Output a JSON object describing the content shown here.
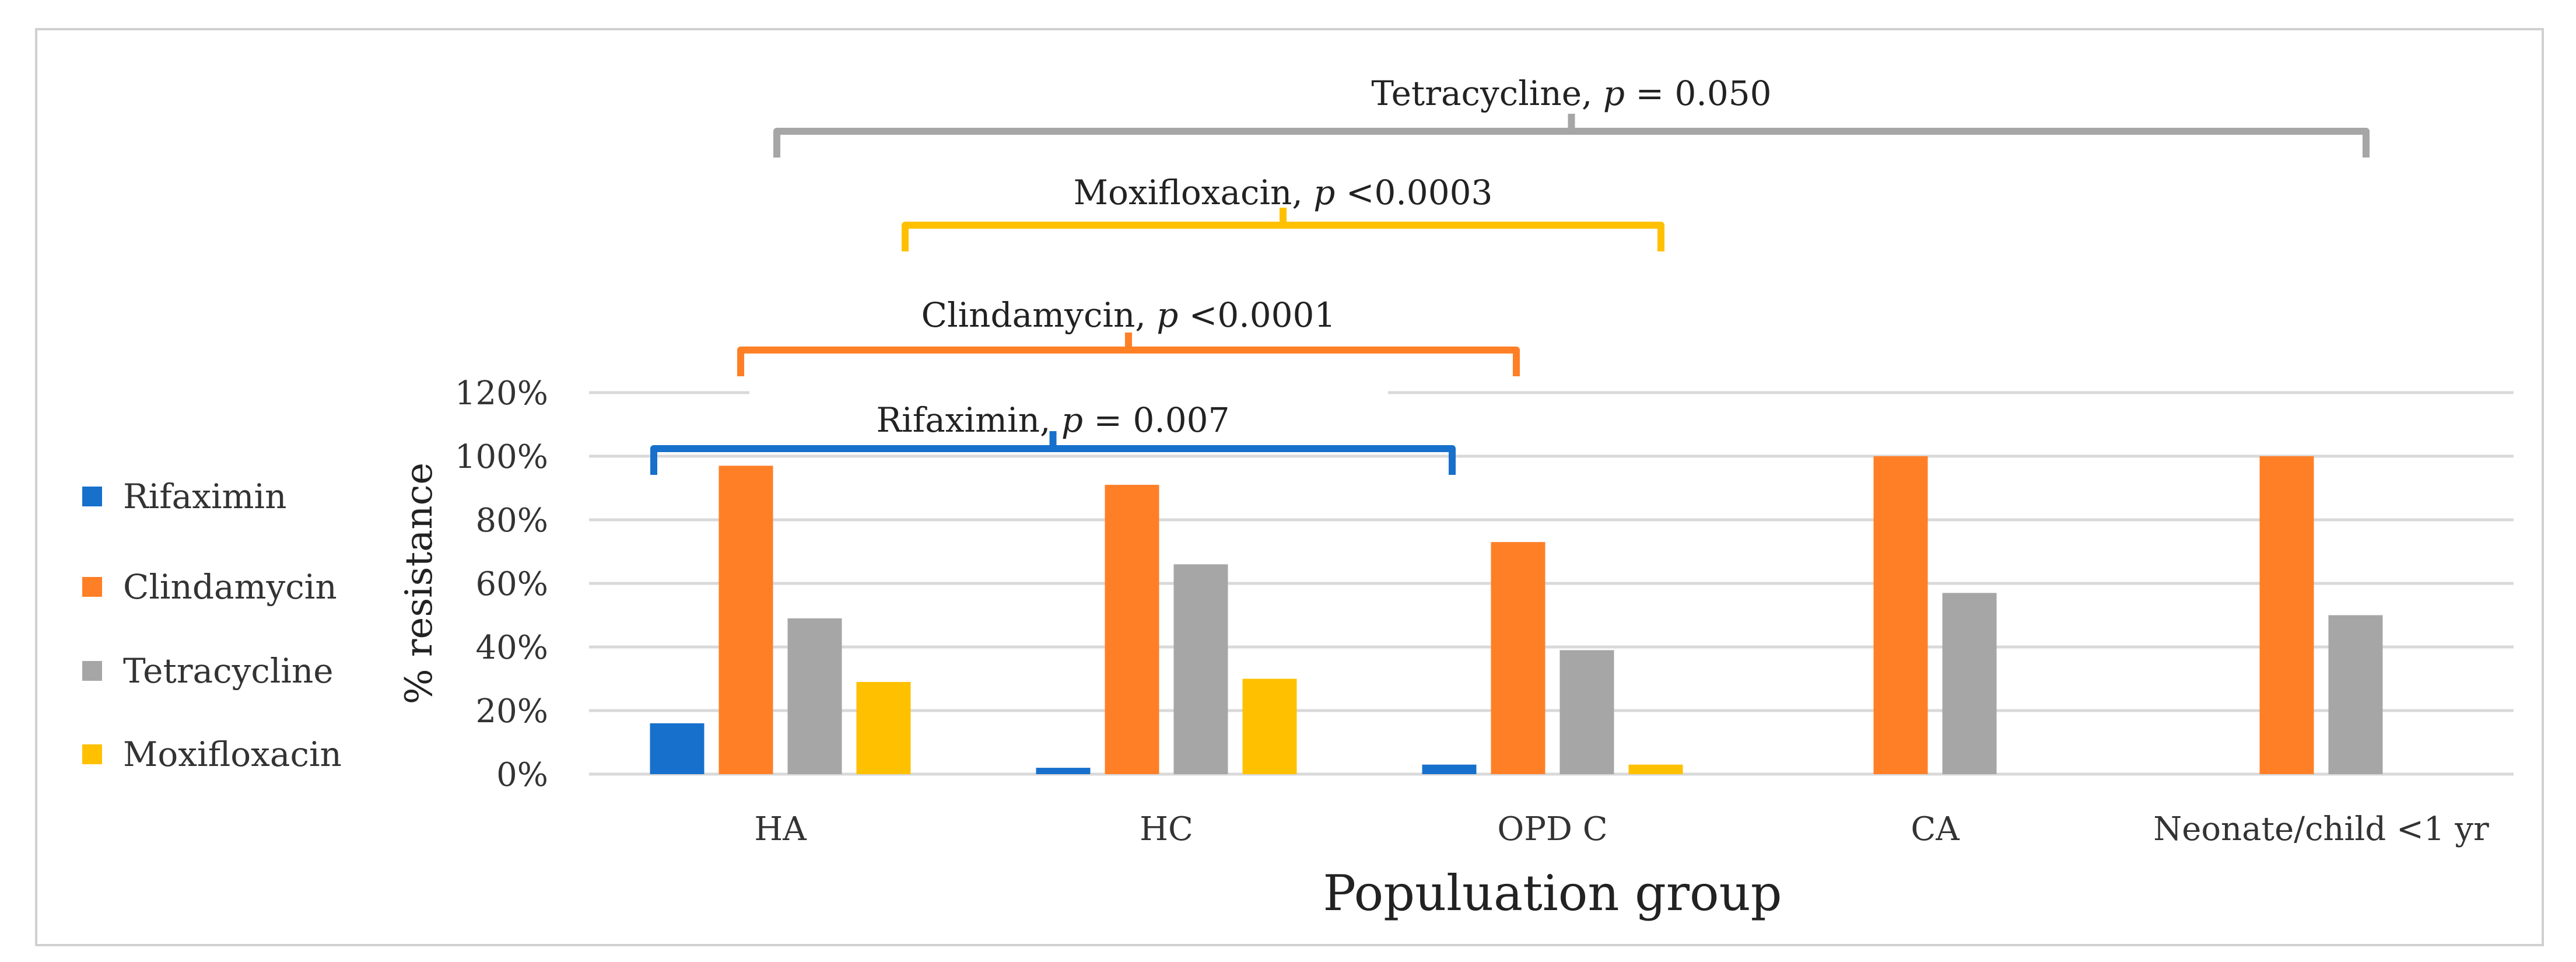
{
  "chart_data": {
    "type": "bar",
    "title": "",
    "xlabel": "Populuation group",
    "ylabel": "% resistance",
    "ylim": [
      0,
      120
    ],
    "yticks": [
      "0%",
      "20%",
      "40%",
      "60%",
      "80%",
      "100%",
      "120%"
    ],
    "grid": true,
    "legend_position": "left",
    "categories": [
      "HA",
      "HC",
      "OPD C",
      "CA",
      "Neonate/child <1 yr"
    ],
    "series": [
      {
        "name": "Rifaximin",
        "color": "#1770CC",
        "values": [
          16,
          2,
          3,
          0,
          0
        ]
      },
      {
        "name": "Clindamycin",
        "color": "#FF7F27",
        "values": [
          97,
          91,
          73,
          100,
          100
        ]
      },
      {
        "name": "Tetracycline",
        "color": "#A6A6A6",
        "values": [
          49,
          66,
          39,
          57,
          50
        ]
      },
      {
        "name": "Moxifloxacin",
        "color": "#FFC000",
        "values": [
          29,
          30,
          3,
          0,
          0
        ]
      }
    ],
    "annotations": [
      {
        "drug": "Tetracycline",
        "p_text": "p",
        "rest": " = 0.050",
        "color": "#A6A6A6",
        "from": "HA",
        "to": "Neonate/child <1 yr"
      },
      {
        "drug": "Moxifloxacin",
        "p_text": "p",
        "rest": " <0.0003",
        "color": "#FFC000",
        "from": "HA",
        "to": "OPD C"
      },
      {
        "drug": "Clindamycin",
        "p_text": "p",
        "rest": " <0.0001",
        "color": "#FF7F27",
        "from": "HA",
        "to": "OPD C"
      },
      {
        "drug": "Rifaximin",
        "p_text": "p",
        "rest": " = 0.007",
        "color": "#1770CC",
        "from": "HA",
        "to": "OPD C"
      }
    ]
  }
}
